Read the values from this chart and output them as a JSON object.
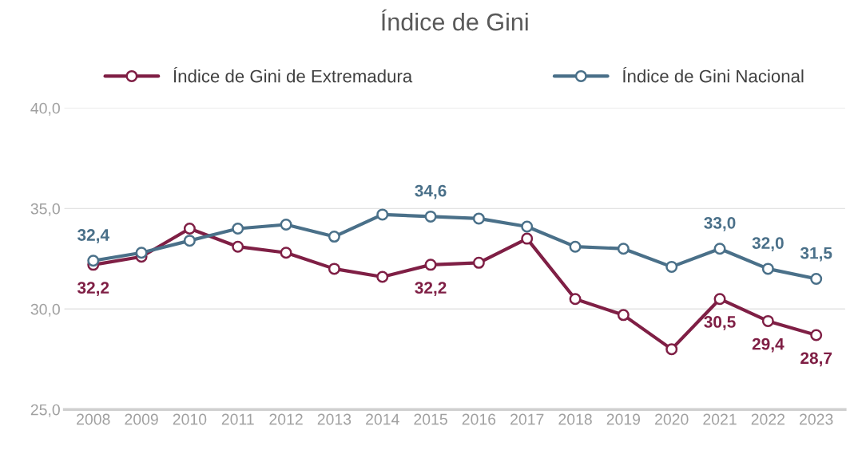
{
  "chart_data": {
    "type": "line",
    "title": "Índice de Gini",
    "categories": [
      "2008",
      "2009",
      "2010",
      "2011",
      "2012",
      "2013",
      "2014",
      "2015",
      "2016",
      "2017",
      "2018",
      "2019",
      "2020",
      "2021",
      "2022",
      "2023"
    ],
    "series": [
      {
        "name": "Índice de Gini de Extremadura",
        "color": "#7f1f45",
        "values": [
          32.2,
          32.6,
          34.0,
          33.1,
          32.8,
          32.0,
          31.6,
          32.2,
          32.3,
          33.5,
          30.5,
          29.7,
          28.0,
          30.5,
          29.4,
          28.7
        ],
        "value_labels": [
          "32,2",
          null,
          null,
          null,
          null,
          null,
          null,
          "32,2",
          null,
          null,
          null,
          null,
          null,
          "30,5",
          "29,4",
          "28,7"
        ]
      },
      {
        "name": "Índice de Gini Nacional",
        "color": "#4a7089",
        "values": [
          32.4,
          32.8,
          33.4,
          34.0,
          34.2,
          33.6,
          34.7,
          34.6,
          34.5,
          34.1,
          33.1,
          33.0,
          32.1,
          33.0,
          32.0,
          31.5
        ],
        "value_labels": [
          "32,4",
          null,
          null,
          null,
          null,
          null,
          null,
          "34,6",
          null,
          null,
          null,
          null,
          null,
          "33,0",
          "32,0",
          "31,5"
        ]
      }
    ],
    "ylim": [
      25,
      40
    ],
    "yticks": [
      {
        "value": 25,
        "label": "25,0"
      },
      {
        "value": 30,
        "label": "30,0"
      },
      {
        "value": 35,
        "label": "35,0"
      },
      {
        "value": 40,
        "label": "40,0"
      }
    ],
    "grid": "y",
    "legend": "top",
    "marker": "circle",
    "line_style": "solid"
  }
}
